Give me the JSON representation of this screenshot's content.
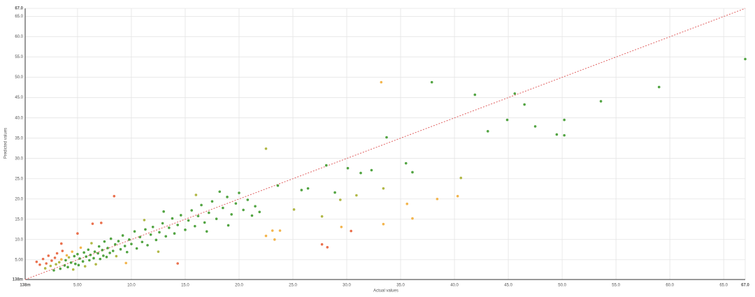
{
  "chart_data": {
    "type": "scatter",
    "xlabel": "Actual values",
    "ylabel": "Predicted values",
    "xlim": [
      0.138,
      67.0
    ],
    "ylim": [
      0.138,
      67.0
    ],
    "xticks": [
      {
        "value": 0.138,
        "label": "138m"
      },
      {
        "value": 5,
        "label": "5.00"
      },
      {
        "value": 10,
        "label": "10.0"
      },
      {
        "value": 15,
        "label": "15.0"
      },
      {
        "value": 20,
        "label": "20.0"
      },
      {
        "value": 25,
        "label": "25.0"
      },
      {
        "value": 30,
        "label": "30.0"
      },
      {
        "value": 35,
        "label": "35.0"
      },
      {
        "value": 40,
        "label": "40.0"
      },
      {
        "value": 45,
        "label": "45.0"
      },
      {
        "value": 50,
        "label": "50.0"
      },
      {
        "value": 55,
        "label": "55.0"
      },
      {
        "value": 60,
        "label": "60.0"
      },
      {
        "value": 65,
        "label": "65.0"
      },
      {
        "value": 67,
        "label": "67.0"
      }
    ],
    "yticks": [
      {
        "value": 0.138,
        "label": "138m"
      },
      {
        "value": 5,
        "label": "5.00"
      },
      {
        "value": 10,
        "label": "10.0"
      },
      {
        "value": 15,
        "label": "15.0"
      },
      {
        "value": 20,
        "label": "20.0"
      },
      {
        "value": 25,
        "label": "25.0"
      },
      {
        "value": 30,
        "label": "30.0"
      },
      {
        "value": 35,
        "label": "35.0"
      },
      {
        "value": 40,
        "label": "40.0"
      },
      {
        "value": 45,
        "label": "45.0"
      },
      {
        "value": 50,
        "label": "50.0"
      },
      {
        "value": 55,
        "label": "55.0"
      },
      {
        "value": 60,
        "label": "60.0"
      },
      {
        "value": 65,
        "label": "65.0"
      },
      {
        "value": 67,
        "label": "67.0"
      }
    ],
    "grid": true,
    "reference_line_color": "#e06060",
    "error_breaks": [
      0.3,
      0.45,
      0.6
    ],
    "colors": [
      "#3f9a2e",
      "#a8b032",
      "#f2ad3a",
      "#e8603a"
    ],
    "x": [
      33.2,
      37.9,
      41.9,
      45.6,
      46.5,
      59.0,
      67.0,
      53.6,
      44.9,
      47.5,
      43.1,
      50.2,
      49.5,
      50.2,
      33.7,
      22.5,
      35.5,
      36.1,
      30.1,
      32.3,
      31.3,
      28.1,
      40.6,
      33.4,
      26.4,
      23.6,
      28.9,
      30.9,
      29.4,
      38.4,
      40.3,
      35.6,
      36.1,
      27.7,
      33.4,
      29.5,
      30.4,
      27.7,
      28.2,
      23.1,
      23.8,
      23.3,
      22.5,
      8.4,
      14.3,
      25.1,
      25.8,
      1.2,
      1.5,
      1.8,
      2.0,
      2.1,
      2.3,
      2.5,
      2.6,
      2.8,
      2.9,
      3.0,
      3.1,
      3.3,
      3.4,
      3.5,
      3.6,
      3.8,
      3.9,
      4.0,
      4.1,
      4.2,
      4.4,
      4.5,
      4.6,
      4.7,
      4.8,
      5.0,
      5.1,
      5.2,
      5.3,
      5.5,
      5.6,
      5.7,
      5.8,
      6.0,
      6.1,
      6.2,
      6.3,
      6.5,
      6.6,
      6.7,
      6.9,
      7.0,
      7.1,
      7.3,
      7.4,
      7.5,
      7.7,
      7.8,
      8.0,
      8.1,
      8.3,
      8.5,
      8.6,
      8.8,
      9.0,
      9.2,
      9.4,
      9.6,
      9.8,
      10.0,
      10.3,
      10.5,
      10.8,
      11.0,
      11.3,
      11.5,
      11.8,
      12.0,
      12.3,
      12.6,
      12.9,
      13.2,
      13.5,
      13.8,
      14.0,
      14.3,
      14.6,
      15.0,
      15.3,
      15.6,
      15.9,
      16.2,
      16.5,
      16.8,
      17.2,
      17.5,
      17.9,
      18.2,
      18.5,
      18.9,
      19.3,
      19.7,
      20.0,
      20.4,
      20.8,
      21.2,
      21.5,
      21.9,
      7.2,
      6.4,
      11.2,
      13.0,
      16.0,
      19.0,
      17.0,
      9.5,
      12.5,
      3.5,
      5.0
    ],
    "y": [
      48.8,
      48.8,
      45.7,
      46.0,
      43.3,
      47.6,
      54.5,
      44.1,
      39.5,
      37.9,
      36.7,
      39.5,
      35.9,
      35.7,
      35.2,
      32.4,
      28.8,
      26.6,
      27.6,
      27.1,
      26.4,
      28.3,
      25.2,
      22.6,
      22.6,
      23.3,
      21.6,
      20.9,
      19.8,
      20.0,
      20.7,
      18.8,
      15.2,
      15.7,
      13.8,
      13.1,
      12.1,
      8.8,
      8.1,
      12.2,
      12.2,
      10.0,
      10.9,
      20.7,
      4.1,
      17.4,
      22.2,
      4.5,
      3.8,
      5.2,
      2.9,
      4.1,
      6.0,
      3.5,
      4.8,
      2.4,
      5.5,
      3.9,
      6.6,
      4.4,
      2.8,
      5.1,
      7.2,
      3.6,
      4.9,
      6.1,
      3.2,
      5.6,
      4.3,
      7.0,
      2.6,
      5.9,
      4.0,
      6.4,
      3.7,
      5.3,
      8.0,
      4.6,
      6.8,
      3.4,
      5.8,
      7.5,
      4.9,
      6.2,
      9.1,
      5.4,
      7.0,
      3.9,
      6.6,
      8.3,
      5.2,
      7.4,
      6.0,
      9.5,
      5.7,
      7.9,
      6.7,
      10.2,
      7.2,
      8.8,
      5.9,
      9.6,
      7.6,
      11.0,
      8.4,
      6.9,
      10.0,
      8.9,
      12.0,
      7.8,
      10.6,
      9.4,
      12.5,
      8.6,
      11.2,
      13.1,
      9.9,
      11.8,
      14.0,
      10.8,
      12.9,
      15.2,
      11.5,
      13.6,
      16.0,
      12.4,
      14.7,
      17.2,
      13.3,
      15.8,
      18.5,
      14.2,
      16.6,
      19.4,
      15.1,
      21.8,
      17.8,
      20.5,
      16.2,
      18.9,
      21.5,
      17.3,
      19.8,
      15.9,
      18.2,
      16.8,
      14.1,
      13.9,
      14.8,
      16.9,
      21.0,
      13.5,
      12.0,
      4.2,
      7.0,
      9.0,
      11.5
    ]
  }
}
